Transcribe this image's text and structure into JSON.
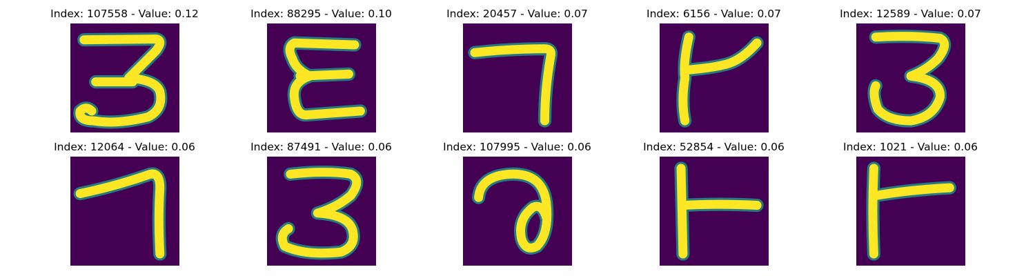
{
  "colors": {
    "background": "#440154",
    "stroke_mid": "#21918c",
    "stroke_core": "#fde725"
  },
  "panels": [
    {
      "title": "Index: 107558 - Value: 0.12",
      "glyph": "three-glyph"
    },
    {
      "title": "Index: 88295 - Value: 0.10",
      "glyph": "epsilon-glyph"
    },
    {
      "title": "Index: 20457 - Value: 0.07",
      "glyph": "seven-glyph"
    },
    {
      "title": "Index: 6156 - Value: 0.07",
      "glyph": "k-glyph"
    },
    {
      "title": "Index: 12589 - Value: 0.07",
      "glyph": "three-glyph"
    },
    {
      "title": "Index: 12064 - Value: 0.06",
      "glyph": "seven-glyph"
    },
    {
      "title": "Index: 87491 - Value: 0.06",
      "glyph": "three-glyph"
    },
    {
      "title": "Index: 107995 - Value: 0.06",
      "glyph": "a-glyph"
    },
    {
      "title": "Index: 52854 - Value: 0.06",
      "glyph": "t-glyph"
    },
    {
      "title": "Index: 1021 - Value: 0.06",
      "glyph": "t-glyph"
    }
  ]
}
